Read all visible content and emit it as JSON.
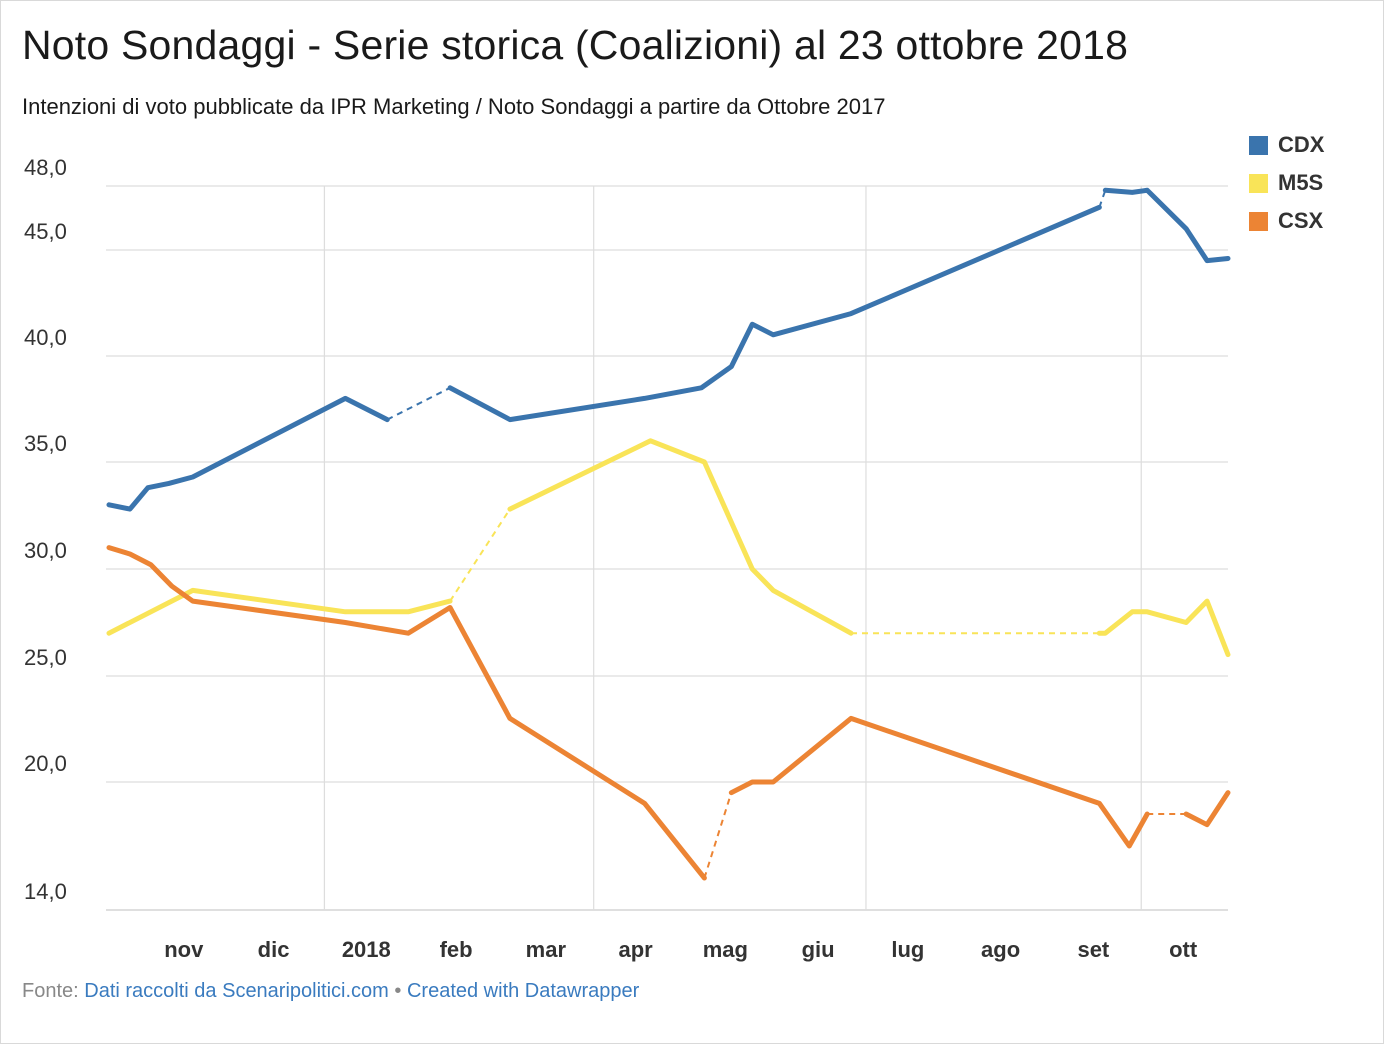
{
  "title": "Noto Sondaggi - Serie storica (Coalizioni) al 23 ottobre 2018",
  "subtitle": "Intenzioni di voto pubblicate da IPR Marketing / Noto Sondaggi a partire da Ottobre 2017",
  "footer": {
    "prefix": "Fonte:",
    "source": "Dati raccolti da Scenaripolitici.com",
    "separator": "•",
    "credit": "Created with Datawrapper"
  },
  "chart_data": {
    "type": "line",
    "title": "Noto Sondaggi - Serie storica (Coalizioni) al 23 ottobre 2018",
    "xlabel": "",
    "ylabel": "",
    "x_ticks": [
      "nov",
      "dic",
      "2018",
      "feb",
      "mar",
      "apr",
      "mag",
      "giu",
      "lug",
      "ago",
      "set",
      "ott"
    ],
    "y_ticks": [
      "48,0",
      "45,0",
      "40,0",
      "35,0",
      "30,0",
      "25,0",
      "20,0",
      "14,0"
    ],
    "ylim": [
      14,
      48
    ],
    "xlim": [
      "2017-10-20",
      "2018-10-23"
    ],
    "grid": true,
    "legend_position": "top-right",
    "series": [
      {
        "name": "CDX",
        "color": "#3a74ad",
        "dashed_segments": [
          [
            6,
            7
          ],
          [
            15,
            16
          ]
        ],
        "points": [
          [
            "2017-10-21",
            33.0
          ],
          [
            "2017-10-28",
            32.8
          ],
          [
            "2017-11-03",
            33.8
          ],
          [
            "2017-11-10",
            34.0
          ],
          [
            "2017-11-18",
            34.3
          ],
          [
            "2018-01-08",
            38.0
          ],
          [
            "2018-01-22",
            37.0
          ],
          [
            "2018-02-12",
            38.5
          ],
          [
            "2018-03-04",
            37.0
          ],
          [
            "2018-04-18",
            38.0
          ],
          [
            "2018-05-07",
            38.5
          ],
          [
            "2018-05-17",
            39.5
          ],
          [
            "2018-05-24",
            41.5
          ],
          [
            "2018-05-31",
            41.0
          ],
          [
            "2018-06-26",
            42.0
          ],
          [
            "2018-09-17",
            47.0
          ],
          [
            "2018-09-19",
            47.8
          ],
          [
            "2018-09-28",
            47.7
          ],
          [
            "2018-10-03",
            47.8
          ],
          [
            "2018-10-16",
            46.0
          ],
          [
            "2018-10-23",
            44.5
          ],
          [
            "2018-10-30",
            44.6
          ]
        ]
      },
      {
        "name": "M5S",
        "color": "#f9e458",
        "dashed_segments": [
          [
            4,
            5
          ],
          [
            11,
            12
          ]
        ],
        "points": [
          [
            "2017-10-21",
            27.0
          ],
          [
            "2017-11-18",
            29.0
          ],
          [
            "2018-01-08",
            28.0
          ],
          [
            "2018-01-29",
            28.0
          ],
          [
            "2018-02-12",
            28.5
          ],
          [
            "2018-03-04",
            32.8
          ],
          [
            "2018-04-20",
            36.0
          ],
          [
            "2018-05-08",
            35.0
          ],
          [
            "2018-05-16",
            32.5
          ],
          [
            "2018-05-24",
            30.0
          ],
          [
            "2018-05-31",
            29.0
          ],
          [
            "2018-06-26",
            27.0
          ],
          [
            "2018-09-17",
            27.0
          ],
          [
            "2018-09-19",
            27.0
          ],
          [
            "2018-09-28",
            28.0
          ],
          [
            "2018-10-03",
            28.0
          ],
          [
            "2018-10-16",
            27.5
          ],
          [
            "2018-10-23",
            28.5
          ],
          [
            "2018-10-30",
            26.0
          ]
        ]
      },
      {
        "name": "CSX",
        "color": "#ec8434",
        "dashed_segments": [
          [
            10,
            11
          ],
          [
            17,
            18
          ]
        ],
        "points": [
          [
            "2017-10-21",
            31.0
          ],
          [
            "2017-10-28",
            30.7
          ],
          [
            "2017-11-04",
            30.2
          ],
          [
            "2017-11-11",
            29.2
          ],
          [
            "2017-11-18",
            28.5
          ],
          [
            "2018-01-08",
            27.5
          ],
          [
            "2018-01-29",
            27.0
          ],
          [
            "2018-02-12",
            28.2
          ],
          [
            "2018-03-04",
            23.0
          ],
          [
            "2018-04-18",
            19.0
          ],
          [
            "2018-05-08",
            15.5
          ],
          [
            "2018-05-17",
            19.5
          ],
          [
            "2018-05-24",
            20.0
          ],
          [
            "2018-05-31",
            20.0
          ],
          [
            "2018-06-26",
            23.0
          ],
          [
            "2018-09-17",
            19.0
          ],
          [
            "2018-09-27",
            17.0
          ],
          [
            "2018-10-03",
            18.5
          ],
          [
            "2018-10-16",
            18.5
          ],
          [
            "2018-10-23",
            18.0
          ],
          [
            "2018-10-30",
            19.5
          ]
        ]
      }
    ]
  }
}
